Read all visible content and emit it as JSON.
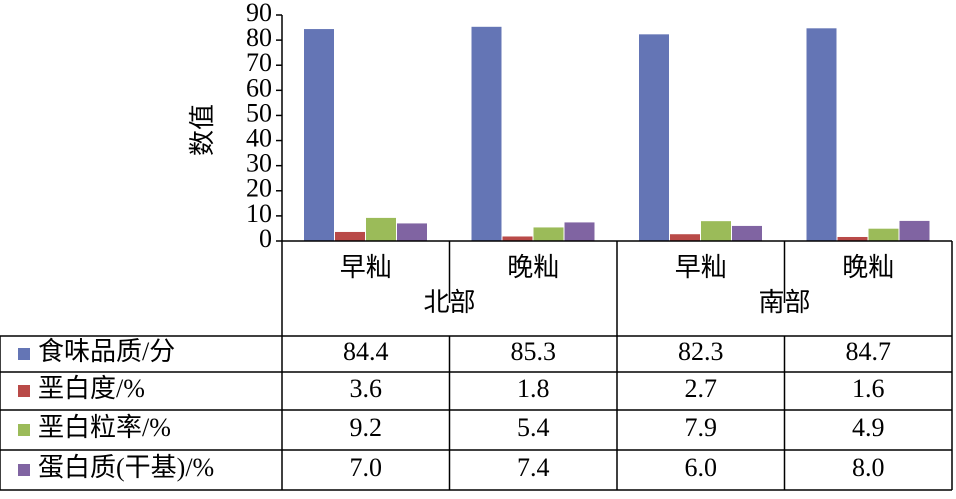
{
  "chart_data": {
    "type": "bar",
    "y_label": "数值",
    "categories": [
      "早籼",
      "晚籼",
      "早籼",
      "晚籼"
    ],
    "groups": [
      "北部",
      "南部"
    ],
    "series": [
      {
        "name": "食味品质/分",
        "color": "#6475b5",
        "values": [
          84.4,
          85.3,
          82.3,
          84.7
        ]
      },
      {
        "name": "垩白度/%",
        "color": "#b94a48",
        "values": [
          3.6,
          1.8,
          2.7,
          1.6
        ]
      },
      {
        "name": "垩白粒率/%",
        "color": "#9bbb59",
        "values": [
          9.2,
          5.4,
          7.9,
          4.9
        ]
      },
      {
        "name": "蛋白质(干基)/%",
        "color": "#8064a2",
        "values": [
          7,
          7.4,
          6,
          8
        ],
        "value_labels": [
          "7.0",
          "7.4",
          "6.0",
          "8.0"
        ]
      }
    ],
    "ylim": [
      0,
      90
    ],
    "yticks": [
      0,
      10,
      20,
      30,
      40,
      50,
      60,
      70,
      80,
      90
    ],
    "grid": false
  }
}
